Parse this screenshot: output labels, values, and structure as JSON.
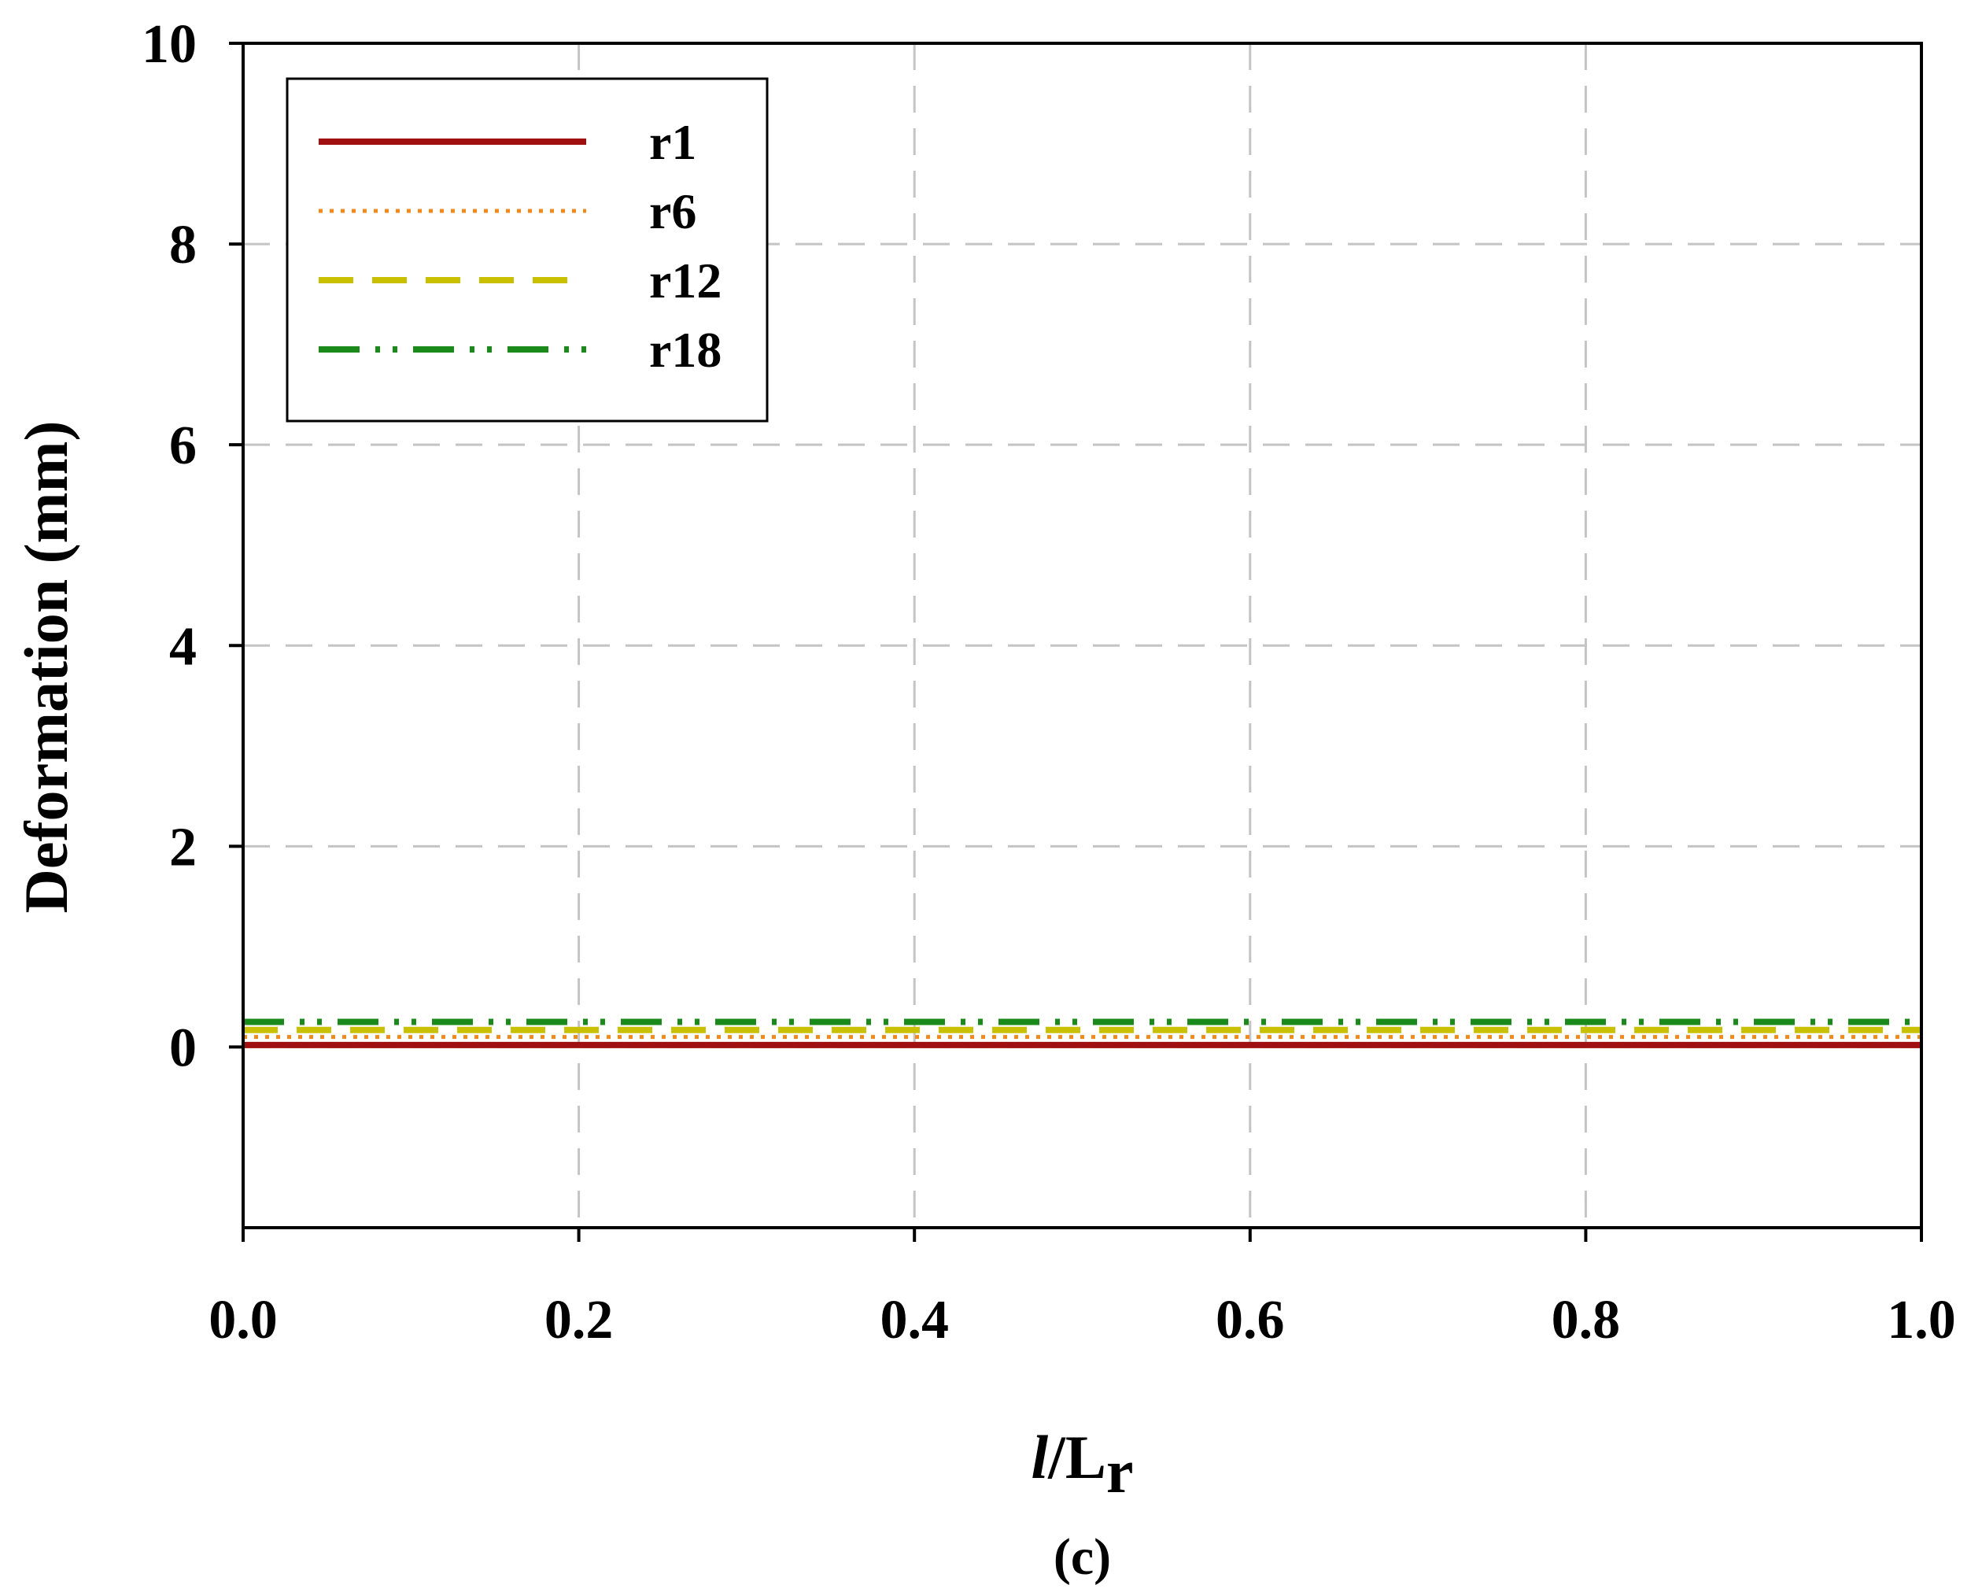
{
  "chart_data": {
    "type": "line",
    "title": "",
    "xlabel_main": "l",
    "xlabel_rest": "/L",
    "xlabel_sub": "r",
    "ylabel": "Deformation (mm)",
    "xlim": [
      0.0,
      1.0
    ],
    "ylim": [
      -1.8,
      10
    ],
    "x_ticks": [
      "0.0",
      "0.2",
      "0.4",
      "0.6",
      "0.8",
      "1.0"
    ],
    "x_tick_values": [
      0.0,
      0.2,
      0.4,
      0.6,
      0.8,
      1.0
    ],
    "y_ticks": [
      "0",
      "2",
      "4",
      "6",
      "8",
      "10"
    ],
    "y_tick_values": [
      0,
      2,
      4,
      6,
      8,
      10
    ],
    "grid": true,
    "legend_position": "top-left",
    "caption": "(c)",
    "x": [
      0.0,
      0.2,
      0.4,
      0.6,
      0.8,
      1.0
    ],
    "series": [
      {
        "name": "r1",
        "values": [
          0.02,
          0.02,
          0.02,
          0.02,
          0.02,
          0.02
        ],
        "color": "#a01010",
        "style": "solid"
      },
      {
        "name": "r6",
        "values": [
          0.1,
          0.1,
          0.1,
          0.1,
          0.1,
          0.1
        ],
        "color": "#f08a1c",
        "style": "dotted"
      },
      {
        "name": "r12",
        "values": [
          0.17,
          0.17,
          0.17,
          0.17,
          0.17,
          0.17
        ],
        "color": "#c8c000",
        "style": "dashed"
      },
      {
        "name": "r18",
        "values": [
          0.25,
          0.25,
          0.25,
          0.25,
          0.25,
          0.25
        ],
        "color": "#1a8a1a",
        "style": "dashdotdot"
      }
    ]
  }
}
